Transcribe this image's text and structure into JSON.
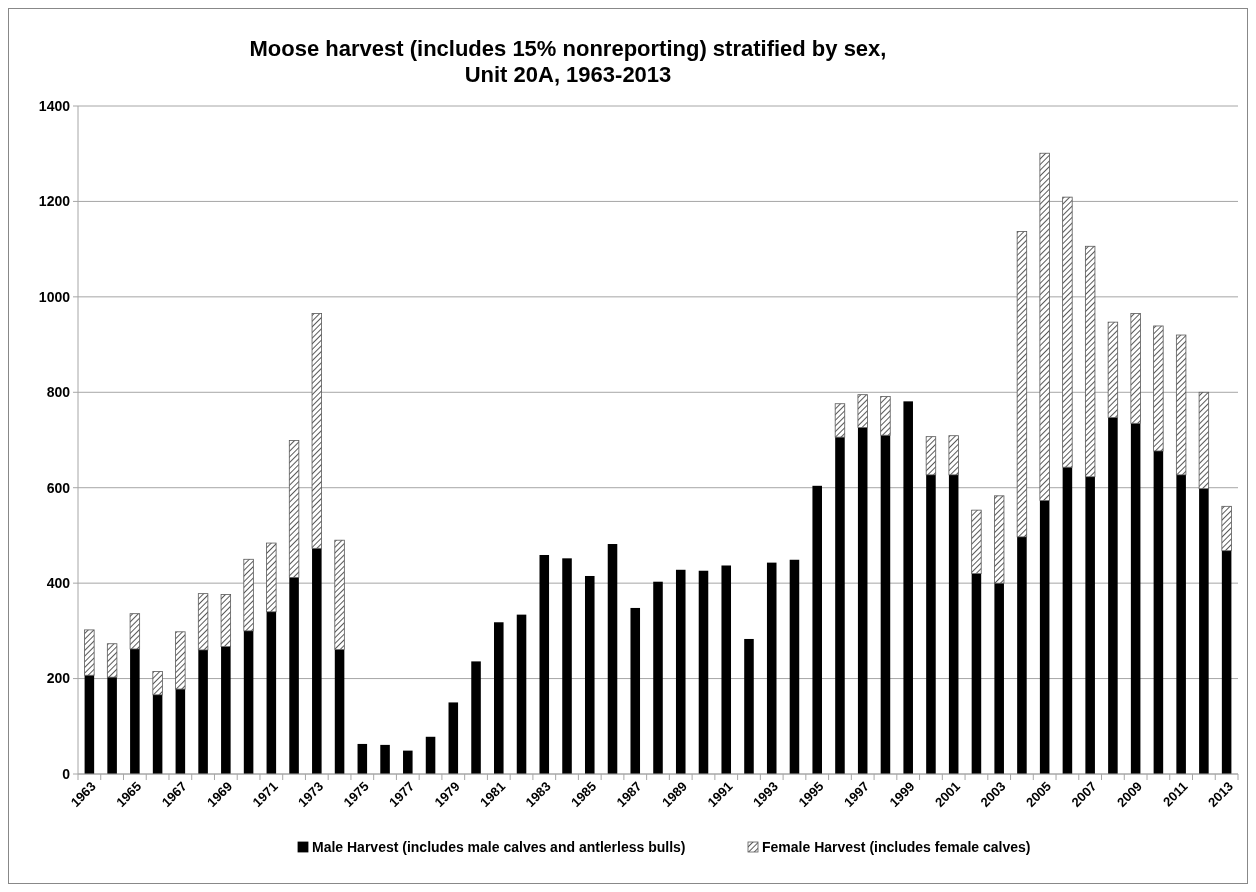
{
  "chart_data": {
    "type": "bar",
    "title": "Moose harvest  (includes 15% nonreporting) stratified by sex,\nUnit 20A, 1963-2013",
    "categories": [
      "1963",
      null,
      "1965",
      null,
      "1967",
      null,
      "1969",
      null,
      "1971",
      null,
      "1973",
      null,
      "1975",
      null,
      "1977",
      null,
      "1979",
      null,
      "1981",
      null,
      "1983",
      null,
      "1985",
      null,
      "1987",
      null,
      "1989",
      null,
      "1991",
      null,
      "1993",
      null,
      "1995",
      null,
      "1997",
      null,
      "1999",
      null,
      "2001",
      null,
      "2003",
      null,
      "2005",
      null,
      "2007",
      null,
      "2009",
      null,
      "2011",
      null,
      "2013"
    ],
    "stacked": true,
    "series": [
      {
        "name": "Male Harvest (includes male calves and antlerless bulls)",
        "color": "#000000",
        "values": [
          207,
          203,
          262,
          166,
          178,
          260,
          267,
          300,
          340,
          412,
          473,
          261,
          63,
          61,
          49,
          78,
          150,
          236,
          318,
          334,
          459,
          452,
          415,
          482,
          348,
          403,
          428,
          426,
          437,
          283,
          443,
          449,
          604,
          706,
          726,
          710,
          781,
          627,
          627,
          420,
          400,
          497,
          573,
          643,
          623,
          747,
          735,
          677,
          627,
          598,
          468
        ]
      },
      {
        "name": "Female Harvest  (includes female calves)",
        "color": "#595959",
        "values": [
          95,
          70,
          74,
          49,
          120,
          118,
          109,
          150,
          144,
          287,
          492,
          229,
          null,
          null,
          null,
          null,
          null,
          null,
          null,
          null,
          null,
          null,
          null,
          null,
          null,
          null,
          null,
          null,
          null,
          null,
          null,
          null,
          null,
          70,
          69,
          81,
          null,
          80,
          82,
          133,
          183,
          640,
          728,
          566,
          483,
          200,
          230,
          262,
          293,
          202,
          93
        ]
      }
    ],
    "ylim": [
      0,
      1400
    ],
    "yticks": [
      0,
      200,
      400,
      600,
      800,
      1000,
      1200,
      1400
    ],
    "grid": "y",
    "legend": "bottom"
  }
}
